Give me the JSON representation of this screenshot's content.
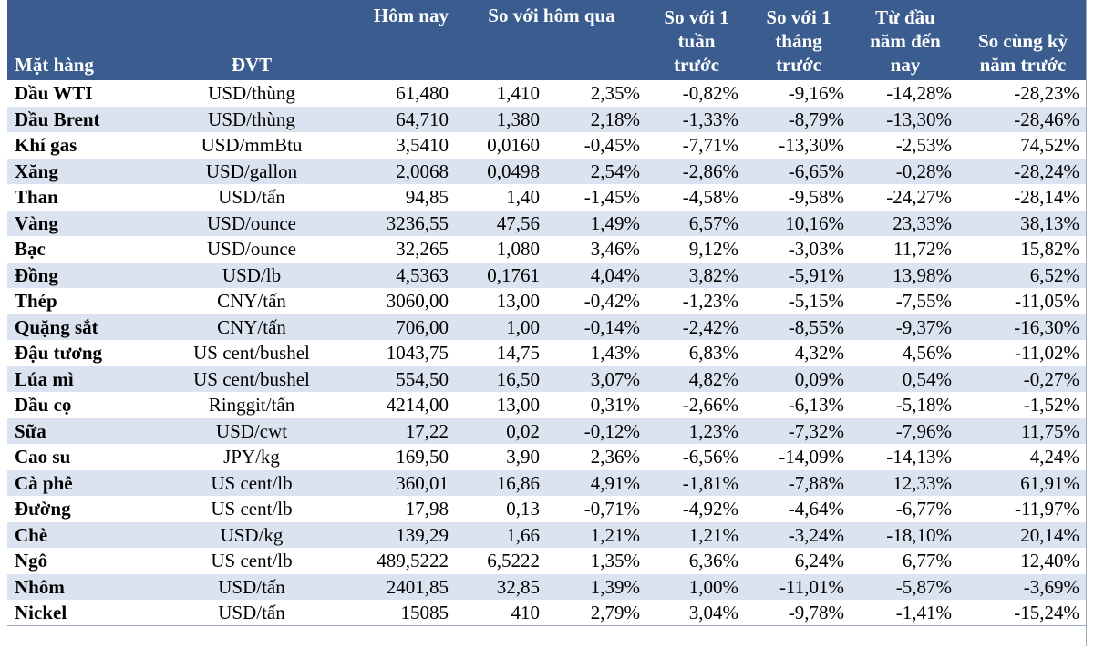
{
  "header": {
    "item": "Mặt hàng",
    "unit": "ĐVT",
    "today": "Hôm nay",
    "vs_yesterday": "So với hôm qua",
    "vs_week": "So với 1 tuần trước",
    "vs_month": "So với 1 tháng trước",
    "ytd": "Từ đầu năm đến nay",
    "yoy": "So cùng kỳ năm trước"
  },
  "rows": [
    {
      "name": "Dầu WTI",
      "unit": "USD/thùng",
      "today": "61,480",
      "chg": "1,410",
      "chg_pct": "2,35%",
      "week": "-0,82%",
      "month": "-9,16%",
      "ytd": "-14,28%",
      "yoy": "-28,23%"
    },
    {
      "name": "Dầu Brent",
      "unit": "USD/thùng",
      "today": "64,710",
      "chg": "1,380",
      "chg_pct": "2,18%",
      "week": "-1,33%",
      "month": "-8,79%",
      "ytd": "-13,30%",
      "yoy": "-28,46%"
    },
    {
      "name": "Khí gas",
      "unit": "USD/mmBtu",
      "today": "3,5410",
      "chg": "0,0160",
      "chg_pct": "-0,45%",
      "week": "-7,71%",
      "month": "-13,30%",
      "ytd": "-2,53%",
      "yoy": "74,52%"
    },
    {
      "name": "Xăng",
      "unit": "USD/gallon",
      "today": "2,0068",
      "chg": "0,0498",
      "chg_pct": "2,54%",
      "week": "-2,86%",
      "month": "-6,65%",
      "ytd": "-0,28%",
      "yoy": "-28,24%"
    },
    {
      "name": "Than",
      "unit": "USD/tấn",
      "today": "94,85",
      "chg": "1,40",
      "chg_pct": "-1,45%",
      "week": "-4,58%",
      "month": "-9,58%",
      "ytd": "-24,27%",
      "yoy": "-28,14%"
    },
    {
      "name": "Vàng",
      "unit": "USD/ounce",
      "today": "3236,55",
      "chg": "47,56",
      "chg_pct": "1,49%",
      "week": "6,57%",
      "month": "10,16%",
      "ytd": "23,33%",
      "yoy": "38,13%"
    },
    {
      "name": "Bạc",
      "unit": "USD/ounce",
      "today": "32,265",
      "chg": "1,080",
      "chg_pct": "3,46%",
      "week": "9,12%",
      "month": "-3,03%",
      "ytd": "11,72%",
      "yoy": "15,82%"
    },
    {
      "name": "Đồng",
      "unit": "USD/lb",
      "today": "4,5363",
      "chg": "0,1761",
      "chg_pct": "4,04%",
      "week": "3,82%",
      "month": "-5,91%",
      "ytd": "13,98%",
      "yoy": "6,52%"
    },
    {
      "name": "Thép",
      "unit": "CNY/tấn",
      "today": "3060,00",
      "chg": "13,00",
      "chg_pct": "-0,42%",
      "week": "-1,23%",
      "month": "-5,15%",
      "ytd": "-7,55%",
      "yoy": "-11,05%"
    },
    {
      "name": "Quặng sắt",
      "unit": "CNY/tấn",
      "today": "706,00",
      "chg": "1,00",
      "chg_pct": "-0,14%",
      "week": "-2,42%",
      "month": "-8,55%",
      "ytd": "-9,37%",
      "yoy": "-16,30%"
    },
    {
      "name": "Đậu tương",
      "unit": "US cent/bushel",
      "today": "1043,75",
      "chg": "14,75",
      "chg_pct": "1,43%",
      "week": "6,83%",
      "month": "4,32%",
      "ytd": "4,56%",
      "yoy": "-11,02%"
    },
    {
      "name": "Lúa mì",
      "unit": "US cent/bushel",
      "today": "554,50",
      "chg": "16,50",
      "chg_pct": "3,07%",
      "week": "4,82%",
      "month": "0,09%",
      "ytd": "0,54%",
      "yoy": "-0,27%"
    },
    {
      "name": "Dầu cọ",
      "unit": "Ringgit/tấn",
      "today": "4214,00",
      "chg": "13,00",
      "chg_pct": "0,31%",
      "week": "-2,66%",
      "month": "-6,13%",
      "ytd": "-5,18%",
      "yoy": "-1,52%"
    },
    {
      "name": "Sữa",
      "unit": "USD/cwt",
      "today": "17,22",
      "chg": "0,02",
      "chg_pct": "-0,12%",
      "week": "1,23%",
      "month": "-7,32%",
      "ytd": "-7,96%",
      "yoy": "11,75%"
    },
    {
      "name": "Cao su",
      "unit": "JPY/kg",
      "today": "169,50",
      "chg": "3,90",
      "chg_pct": "2,36%",
      "week": "-6,56%",
      "month": "-14,09%",
      "ytd": "-14,13%",
      "yoy": "4,24%"
    },
    {
      "name": "Cà phê",
      "unit": "US cent/lb",
      "today": "360,01",
      "chg": "16,86",
      "chg_pct": "4,91%",
      "week": "-1,81%",
      "month": "-7,88%",
      "ytd": "12,33%",
      "yoy": "61,91%"
    },
    {
      "name": "Đường",
      "unit": "US cent/lb",
      "today": "17,98",
      "chg": "0,13",
      "chg_pct": "-0,71%",
      "week": "-4,92%",
      "month": "-4,64%",
      "ytd": "-6,77%",
      "yoy": "-11,97%"
    },
    {
      "name": "Chè",
      "unit": "USD/kg",
      "today": "139,29",
      "chg": "1,66",
      "chg_pct": "1,21%",
      "week": "1,21%",
      "month": "-3,24%",
      "ytd": "-18,10%",
      "yoy": "20,14%"
    },
    {
      "name": "Ngô",
      "unit": "US cent/lb",
      "today": "489,5222",
      "chg": "6,5222",
      "chg_pct": "1,35%",
      "week": "6,36%",
      "month": "6,24%",
      "ytd": "6,77%",
      "yoy": "12,40%"
    },
    {
      "name": "Nhôm",
      "unit": "USD/tấn",
      "today": "2401,85",
      "chg": "32,85",
      "chg_pct": "1,39%",
      "week": "1,00%",
      "month": "-11,01%",
      "ytd": "-5,87%",
      "yoy": "-3,69%"
    },
    {
      "name": "Nickel",
      "unit": "USD/tấn",
      "today": "15085",
      "chg": "410",
      "chg_pct": "2,79%",
      "week": "3,04%",
      "month": "-9,78%",
      "ytd": "-1,41%",
      "yoy": "-15,24%"
    }
  ]
}
